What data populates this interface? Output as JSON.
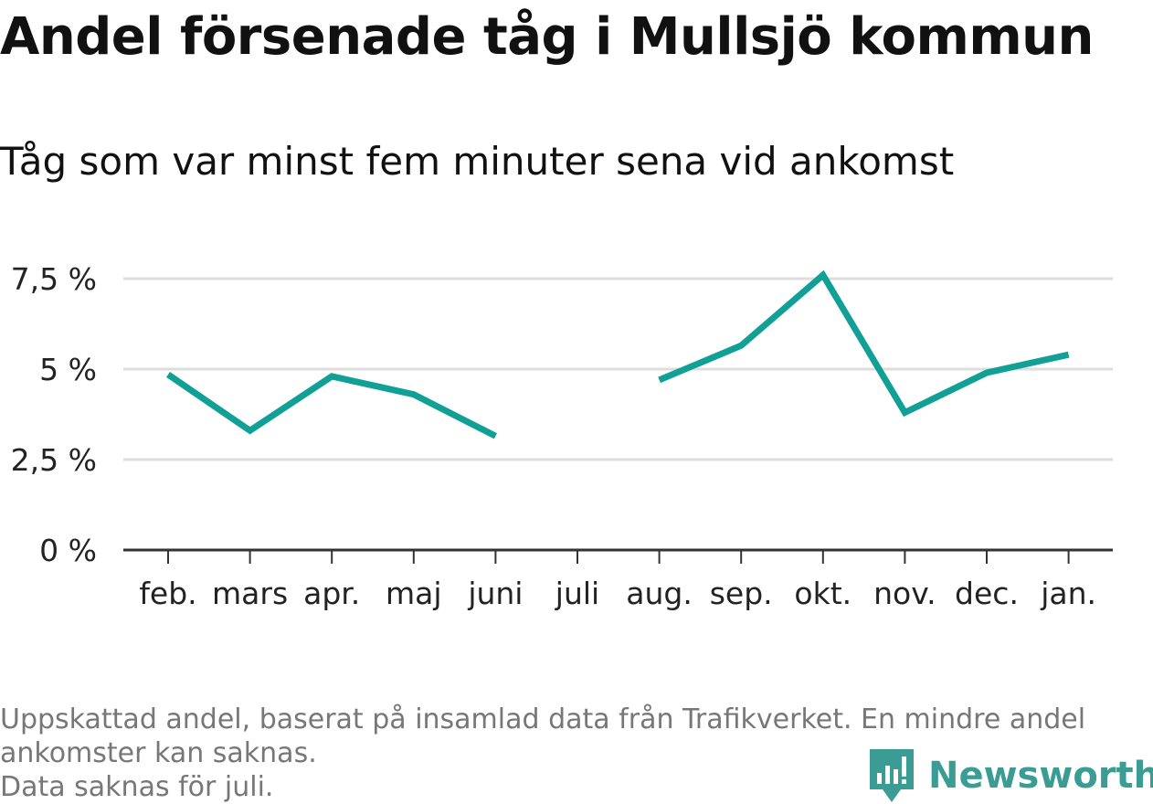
{
  "title": "Andel försenade tåg i Mullsjö kommun",
  "subtitle": "Tåg som var minst fem minuter sena vid ankomst",
  "footnote": {
    "line1": "Uppskattad andel, baserat på insamlad data från Trafikverket. En mindre andel",
    "line2": "ankomster kan saknas.",
    "line3": "Data saknas för juli."
  },
  "brand": {
    "name": "Newsworthy",
    "icon": "newsworthy-logo-icon",
    "color": "#3a9c93"
  },
  "chart_data": {
    "type": "line",
    "categories": [
      "feb.",
      "mars",
      "apr.",
      "maj",
      "juni",
      "juli",
      "aug.",
      "sep.",
      "okt.",
      "nov.",
      "dec.",
      "jan."
    ],
    "series": [
      {
        "values": [
          4.85,
          3.3,
          4.8,
          4.3,
          3.15,
          null,
          4.7,
          5.65,
          7.6,
          3.8,
          4.9,
          5.4
        ],
        "color": "#11a096"
      }
    ],
    "y_ticks": [
      {
        "value": 0,
        "label": "0 %"
      },
      {
        "value": 2.5,
        "label": "2,5 %"
      },
      {
        "value": 5,
        "label": "5 %"
      },
      {
        "value": 7.5,
        "label": "7,5 %"
      }
    ],
    "ylim": [
      0,
      7.5
    ],
    "y_unit": "%",
    "grid": true,
    "gridline_color": "#dddddd",
    "axis_color": "#333333",
    "missing": [
      "juli"
    ]
  }
}
